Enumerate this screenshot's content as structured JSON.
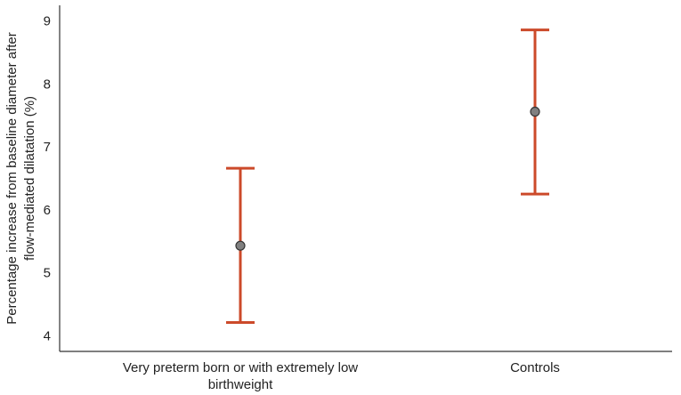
{
  "chart_data": {
    "type": "errorbar",
    "categories": [
      "Very preterm born or with extremely low birthweight",
      "Controls"
    ],
    "category_label_lines": [
      [
        "Very preterm born or with extremely low",
        "birthweight"
      ],
      [
        "Controls"
      ]
    ],
    "means": [
      5.43,
      7.56
    ],
    "lower": [
      4.21,
      6.25
    ],
    "upper": [
      6.66,
      8.86
    ],
    "ylabel_lines": [
      "Percentage increase from baseline diameter after",
      "flow-mediated dilatation (%)"
    ],
    "yticks": [
      "4",
      "5",
      "6",
      "7",
      "8",
      "9"
    ],
    "ylim": [
      3.75,
      9.25
    ],
    "colors": {
      "errorbar": "#cc4a2a",
      "point": "#808080",
      "axis": "#333333"
    },
    "grid": false
  }
}
